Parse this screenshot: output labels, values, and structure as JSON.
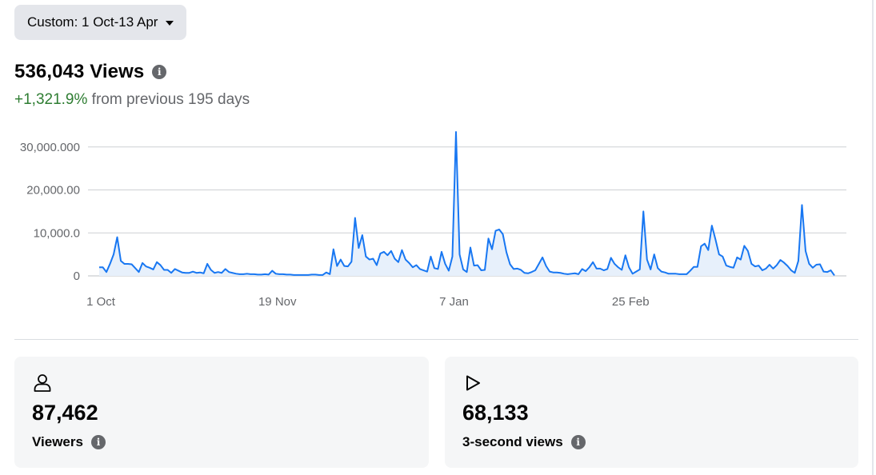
{
  "date_filter": {
    "label": "Custom: 1 Oct-13 Apr"
  },
  "summary": {
    "total_label": "536,043 Views",
    "change_pct": "+1,321.9%",
    "change_text": " from previous 195 days"
  },
  "chart_data": {
    "type": "line",
    "xlabel": "",
    "ylabel": "",
    "ylim": [
      0,
      33500
    ],
    "yticks": [
      0,
      10000,
      20000,
      30000
    ],
    "ytick_labels": [
      "0",
      "10,000.0",
      "20,000.00",
      "30,000.000"
    ],
    "xtick_labels": [
      "1 Oct",
      "19 Nov",
      "7 Jan",
      "25 Feb"
    ],
    "xtick_days": [
      0,
      49,
      98,
      147
    ],
    "grid": true,
    "color": "#1877f2",
    "fill": "#e7f0fb",
    "series": [
      {
        "values": [
          2000,
          2000,
          900,
          2800,
          5000,
          9000,
          3500,
          2800,
          2800,
          2700,
          1800,
          900,
          3000,
          2200,
          1900,
          1500,
          3200,
          2500,
          1400,
          1400,
          700,
          1600,
          1200,
          800,
          700,
          700,
          1000,
          700,
          800,
          600,
          2800,
          1400,
          700,
          900,
          700,
          1600,
          900,
          700,
          500,
          400,
          400,
          500,
          400,
          400,
          300,
          300,
          400,
          300,
          1200,
          500,
          400,
          400,
          300,
          300,
          200,
          200,
          200,
          200,
          200,
          300,
          300,
          200,
          200,
          800,
          400,
          6200,
          2300,
          3800,
          2300,
          2200,
          3300,
          13500,
          6500,
          9500,
          4500,
          3800,
          4000,
          2500,
          5200,
          5600,
          4800,
          5800,
          4000,
          3200,
          6000,
          3800,
          3000,
          2000,
          2500,
          1600,
          1300,
          1000,
          4500,
          1800,
          1600,
          5600,
          2800,
          1200,
          4500,
          33500,
          5000,
          1500,
          900,
          6600,
          2400,
          2500,
          1300,
          1400,
          8700,
          6200,
          10500,
          10800,
          9700,
          5500,
          2700,
          1600,
          1700,
          1400,
          700,
          600,
          900,
          1300,
          2800,
          4300,
          2300,
          1000,
          800,
          800,
          700,
          500,
          400,
          500,
          600,
          400,
          1600,
          1100,
          2000,
          3200,
          1700,
          1700,
          1300,
          1600,
          4200,
          2800,
          2000,
          1400,
          4800,
          2000,
          500,
          1000,
          1500,
          15000,
          3800,
          1500,
          5000,
          1800,
          1000,
          800,
          500,
          500,
          500,
          400,
          400,
          400,
          1200,
          2100,
          2100,
          6900,
          7500,
          6000,
          11700,
          8500,
          5000,
          4500,
          2400,
          2100,
          1900,
          4300,
          3800,
          7000,
          5800,
          2800,
          2200,
          2400,
          1300,
          1700,
          2600,
          1700,
          2500,
          3700,
          3100,
          2300,
          1300,
          700,
          3500,
          16500,
          5800,
          2800,
          1900,
          2600,
          2700,
          1000,
          900,
          1300,
          100
        ]
      }
    ]
  },
  "cards": [
    {
      "icon": "person-icon",
      "value": "87,462",
      "label": "Viewers"
    },
    {
      "icon": "play-icon",
      "value": "68,133",
      "label": "3-second views"
    }
  ]
}
